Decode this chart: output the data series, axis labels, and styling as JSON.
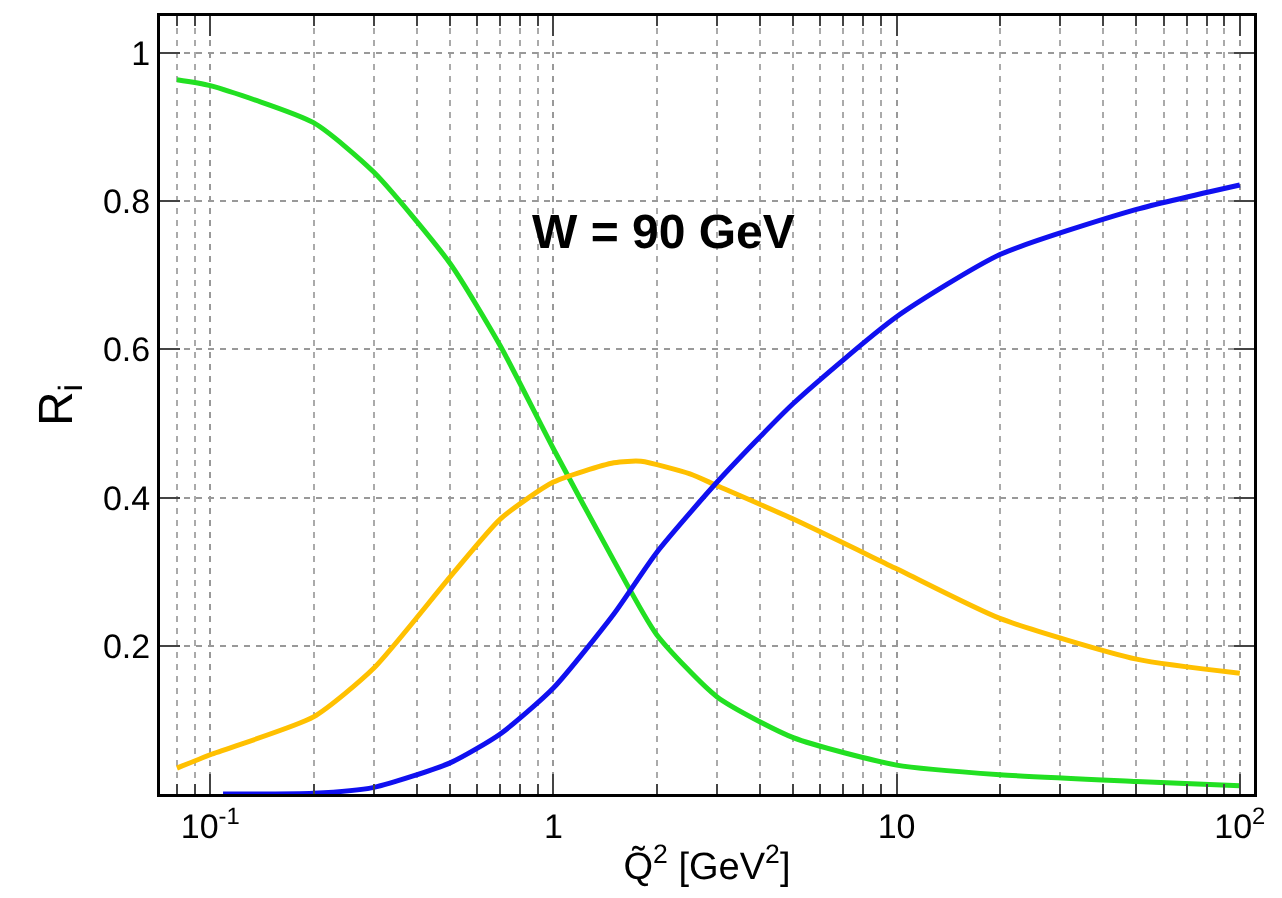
{
  "chart_data": {
    "type": "line",
    "xlabel": "Q̃$^{2}$ [GeV$^{2}$]",
    "ylabel": "R$_{i}$",
    "log": "x",
    "grid": true,
    "marker": "none",
    "line_style": "solid",
    "xlim": [
      0.0714,
      110
    ],
    "ylim": [
      0,
      1.05
    ],
    "xticks": [
      {
        "value": 0.1,
        "label": "10$^{-1}$"
      },
      1,
      10,
      {
        "value": 100,
        "label": "10$^{2}$"
      }
    ],
    "yticks": [
      0.2,
      0.4,
      0.6,
      0.8,
      1
    ],
    "annotations": [
      "W = 90 GeV"
    ],
    "series": [
      {
        "color": "#22e022",
        "x": [
          0.08,
          0.1,
          0.2,
          0.3,
          0.5,
          0.7,
          1,
          1.5,
          2,
          3,
          5,
          10,
          20,
          50,
          100
        ],
        "values": [
          0.964,
          0.956,
          0.906,
          0.839,
          0.716,
          0.605,
          0.466,
          0.315,
          0.215,
          0.131,
          0.076,
          0.039,
          0.026,
          0.017,
          0.011
        ]
      },
      {
        "color": "#ffc000",
        "x": [
          0.08,
          0.1,
          0.2,
          0.3,
          0.5,
          0.7,
          1,
          1.5,
          1.8,
          2.5,
          3,
          5,
          10,
          20,
          50,
          100
        ],
        "values": [
          0.035,
          0.053,
          0.104,
          0.17,
          0.293,
          0.371,
          0.421,
          0.447,
          0.449,
          0.432,
          0.416,
          0.371,
          0.304,
          0.237,
          0.182,
          0.163
        ]
      },
      {
        "color": "#1010f0",
        "x": [
          0.109,
          0.2,
          0.3,
          0.5,
          0.7,
          1,
          1.5,
          2,
          3,
          5,
          10,
          20,
          50,
          100
        ],
        "values": [
          0.0,
          0.001,
          0.009,
          0.042,
          0.081,
          0.143,
          0.243,
          0.326,
          0.421,
          0.527,
          0.644,
          0.728,
          0.789,
          0.822
        ]
      }
    ]
  }
}
